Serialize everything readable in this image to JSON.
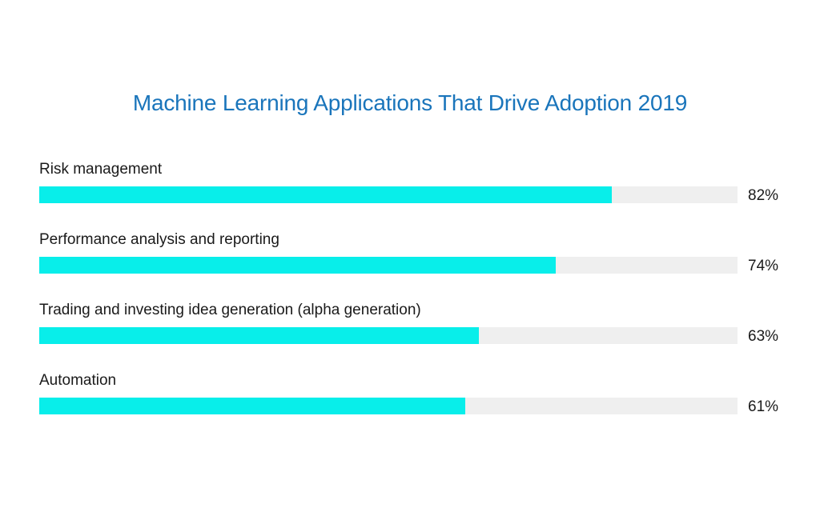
{
  "chart_data": {
    "type": "bar",
    "orientation": "horizontal",
    "title": "Machine Learning Applications That Drive Adoption 2019",
    "categories": [
      "Risk management",
      "Performance analysis and reporting",
      "Trading and investing idea generation (alpha generation)",
      "Automation"
    ],
    "values": [
      82,
      74,
      63,
      61
    ],
    "value_labels": [
      "82%",
      "74%",
      "63%",
      "61%"
    ],
    "xlim": [
      0,
      100
    ],
    "grid": false,
    "legend": "none",
    "colors": {
      "title": "#1a75bb",
      "bar": "#08eeea",
      "track": "#efefef",
      "text": "#1a1a1a"
    }
  }
}
